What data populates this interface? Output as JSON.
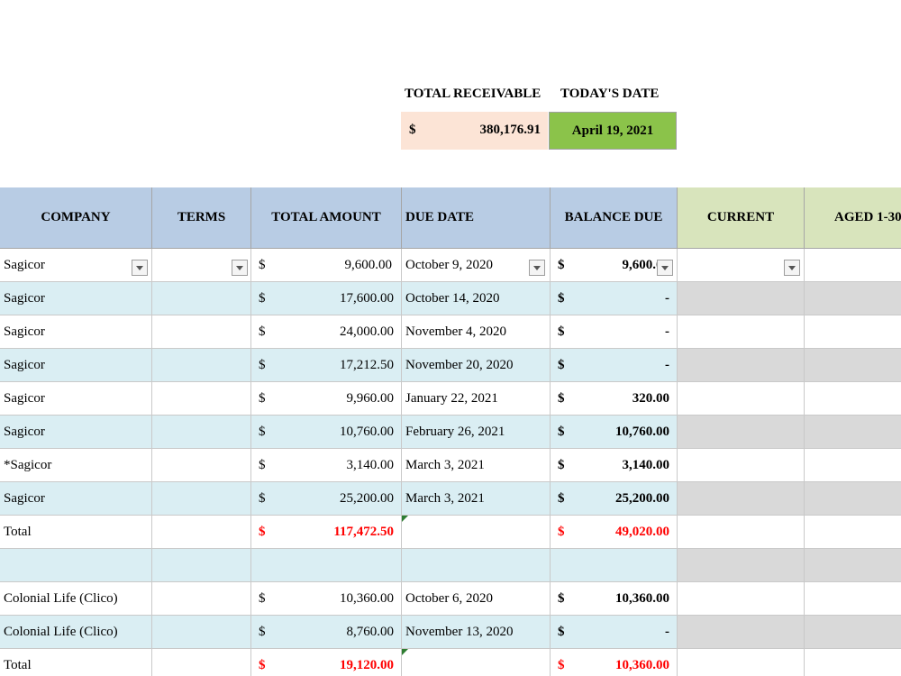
{
  "summary": {
    "total_receivable_label": "TOTAL RECEIVABLE",
    "todays_date_label": "TODAY'S DATE",
    "currency": "$",
    "total_receivable_value": "380,176.91",
    "todays_date_value": "April 19, 2021"
  },
  "headers": {
    "company": "COMPANY",
    "terms": "TERMS",
    "total_amount": "TOTAL AMOUNT",
    "due_date": "DUE DATE",
    "balance_due": "BALANCE DUE",
    "current": "CURRENT",
    "aged": "AGED 1-30"
  },
  "currency": "$",
  "rows": [
    {
      "company": "Sagicor",
      "total": "9,600.00",
      "due": "October 9, 2020",
      "balance": "9,600.00"
    },
    {
      "company": "Sagicor",
      "total": "17,600.00",
      "due": "October 14, 2020",
      "balance": "-"
    },
    {
      "company": "Sagicor",
      "total": "24,000.00",
      "due": "November 4, 2020",
      "balance": "-"
    },
    {
      "company": "Sagicor",
      "total": "17,212.50",
      "due": "November 20, 2020",
      "balance": "-"
    },
    {
      "company": "Sagicor",
      "total": "9,960.00",
      "due": "January 22, 2021",
      "balance": "320.00"
    },
    {
      "company": "Sagicor",
      "total": "10,760.00",
      "due": "February 26, 2021",
      "balance": "10,760.00"
    },
    {
      "company": "*Sagicor",
      "total": "3,140.00",
      "due": "March 3, 2021",
      "balance": "3,140.00"
    },
    {
      "company": "Sagicor",
      "total": "25,200.00",
      "due": "March 3, 2021",
      "balance": "25,200.00"
    },
    {
      "company": "Total",
      "total": "117,472.50",
      "due": "",
      "balance": "49,020.00"
    },
    {
      "company": "",
      "total": "",
      "due": "",
      "balance": ""
    },
    {
      "company": "Colonial Life (Clico)",
      "total": "10,360.00",
      "due": "October 6, 2020",
      "balance": "10,360.00"
    },
    {
      "company": "Colonial Life (Clico)",
      "total": "8,760.00",
      "due": "November 13, 2020",
      "balance": "-"
    },
    {
      "company": "Total",
      "total": "19,120.00",
      "due": "",
      "balance": "10,360.00"
    }
  ]
}
